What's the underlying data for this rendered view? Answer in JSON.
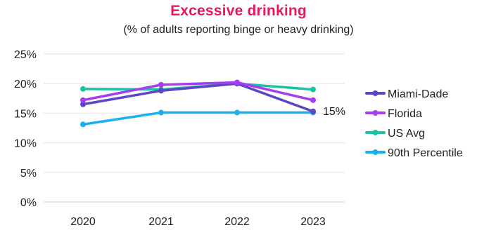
{
  "chart_data": {
    "type": "line",
    "title": "Excessive drinking",
    "subtitle": "(% of adults reporting binge or heavy drinking)",
    "categories": [
      "2020",
      "2021",
      "2022",
      "2023"
    ],
    "ylim": [
      0,
      25
    ],
    "yticks": [
      0,
      5,
      10,
      15,
      20,
      25
    ],
    "ytick_labels": [
      "0%",
      "5%",
      "10%",
      "15%",
      "20%",
      "25%"
    ],
    "grid": true,
    "legend_position": "right",
    "series": [
      {
        "name": "Miami-Dade",
        "values": [
          16.5,
          18.8,
          20.0,
          15.3
        ],
        "color": "#5B45C8"
      },
      {
        "name": "Florida",
        "values": [
          17.2,
          19.8,
          20.2,
          17.2
        ],
        "color": "#A73DF0"
      },
      {
        "name": "US Avg",
        "values": [
          19.1,
          19.0,
          20.0,
          19.0
        ],
        "color": "#19C5A0"
      },
      {
        "name": "90th Percentile",
        "values": [
          13.1,
          15.1,
          15.1,
          15.1
        ],
        "color": "#1AB0F0"
      }
    ],
    "annotations": [
      {
        "text": "15%",
        "series": "Miami-Dade",
        "category": "2023"
      }
    ]
  }
}
